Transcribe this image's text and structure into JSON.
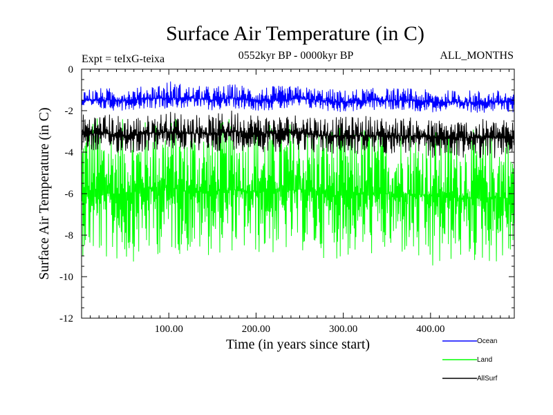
{
  "chart_data": {
    "type": "line",
    "title": "Surface Air Temperature (in C)",
    "experiment_label": "Expt = teIxG-teixa",
    "period_label": "0552kyr BP - 0000kyr BP",
    "months_label": "ALL_MONTHS",
    "xlabel": "Time (in years since start)",
    "ylabel": "Surface Air Temperature (in C)",
    "xlim": [
      0,
      496
    ],
    "ylim": [
      -12,
      0
    ],
    "x_ticks": [
      100,
      200,
      300,
      400
    ],
    "x_tick_labels": [
      "100.00",
      "200.00",
      "300.00",
      "400.00"
    ],
    "y_ticks": [
      0,
      -2,
      -4,
      -6,
      -8,
      -10,
      -12
    ],
    "y_tick_labels": [
      "0",
      "-2",
      "-4",
      "-6",
      "-8",
      "-10",
      "-12"
    ],
    "grid": false,
    "legend_position": "bottom-right",
    "series": [
      {
        "name": "Land",
        "color": "#00ff00",
        "x": [
          0,
          25,
          50,
          75,
          100,
          125,
          150,
          175,
          200,
          225,
          250,
          275,
          300,
          325,
          350,
          375,
          400,
          425,
          450,
          475,
          496
        ],
        "mean": [
          -5.9,
          -6.0,
          -6.0,
          -5.8,
          -5.7,
          -5.9,
          -5.9,
          -5.8,
          -5.9,
          -5.9,
          -5.8,
          -6.0,
          -6.1,
          -6.0,
          -6.0,
          -6.0,
          -6.1,
          -6.2,
          -6.2,
          -6.2,
          -6.2
        ],
        "max": [
          -2.0,
          -2.3,
          -2.4,
          -2.4,
          -2.2,
          -2.4,
          -2.6,
          -2.3,
          -2.5,
          -2.5,
          -2.4,
          -2.6,
          -2.8,
          -2.6,
          -2.7,
          -2.7,
          -2.8,
          -2.8,
          -2.9,
          -2.9,
          -2.9
        ],
        "min": [
          -9.0,
          -9.3,
          -9.4,
          -9.1,
          -8.9,
          -9.0,
          -9.0,
          -8.8,
          -9.0,
          -9.0,
          -8.8,
          -9.1,
          -9.2,
          -9.0,
          -9.1,
          -9.1,
          -10.2,
          -9.3,
          -9.4,
          -9.4,
          -9.4
        ]
      },
      {
        "name": "AllSurf",
        "color": "#000000",
        "x": [
          0,
          25,
          50,
          75,
          100,
          125,
          150,
          175,
          200,
          225,
          250,
          275,
          300,
          325,
          350,
          375,
          400,
          425,
          450,
          475,
          496
        ],
        "mean": [
          -3.1,
          -3.1,
          -3.2,
          -3.1,
          -3.0,
          -3.1,
          -3.1,
          -3.0,
          -3.1,
          -3.1,
          -3.0,
          -3.2,
          -3.2,
          -3.2,
          -3.2,
          -3.2,
          -3.3,
          -3.3,
          -3.3,
          -3.3,
          -3.3
        ],
        "max": [
          -2.1,
          -2.1,
          -2.2,
          -2.2,
          -2.0,
          -2.1,
          -2.2,
          -1.9,
          -2.1,
          -2.2,
          -2.1,
          -2.2,
          -2.3,
          -2.2,
          -2.3,
          -2.3,
          -2.4,
          -2.4,
          -2.4,
          -2.4,
          -2.4
        ],
        "min": [
          -4.0,
          -4.0,
          -4.1,
          -4.0,
          -3.9,
          -4.0,
          -4.0,
          -3.9,
          -4.0,
          -4.0,
          -3.9,
          -4.1,
          -4.2,
          -4.1,
          -4.1,
          -4.1,
          -4.3,
          -4.3,
          -4.3,
          -4.3,
          -4.2
        ]
      },
      {
        "name": "Ocean",
        "color": "#0000ff",
        "x": [
          0,
          25,
          50,
          75,
          100,
          125,
          150,
          175,
          200,
          225,
          250,
          275,
          300,
          325,
          350,
          375,
          400,
          425,
          450,
          475,
          496
        ],
        "mean": [
          -1.5,
          -1.5,
          -1.5,
          -1.4,
          -1.4,
          -1.4,
          -1.5,
          -1.4,
          -1.5,
          -1.5,
          -1.4,
          -1.5,
          -1.6,
          -1.5,
          -1.5,
          -1.5,
          -1.6,
          -1.6,
          -1.6,
          -1.6,
          -1.6
        ],
        "max": [
          -0.9,
          -0.9,
          -0.9,
          -0.8,
          -0.5,
          -0.8,
          -0.8,
          -0.7,
          -0.8,
          -0.8,
          -0.8,
          -0.9,
          -1.0,
          -0.9,
          -0.9,
          -0.9,
          -1.0,
          -1.0,
          -1.0,
          -1.0,
          -1.0
        ],
        "min": [
          -2.0,
          -2.0,
          -2.0,
          -1.9,
          -1.9,
          -1.9,
          -2.0,
          -1.9,
          -2.0,
          -2.0,
          -1.9,
          -2.0,
          -2.1,
          -2.0,
          -2.0,
          -2.0,
          -2.1,
          -2.1,
          -2.1,
          -2.1,
          -2.1
        ]
      }
    ],
    "legend": [
      {
        "name": "Ocean",
        "color": "#0000ff"
      },
      {
        "name": "Land",
        "color": "#00ff00"
      },
      {
        "name": "AllSurf",
        "color": "#000000"
      }
    ]
  }
}
